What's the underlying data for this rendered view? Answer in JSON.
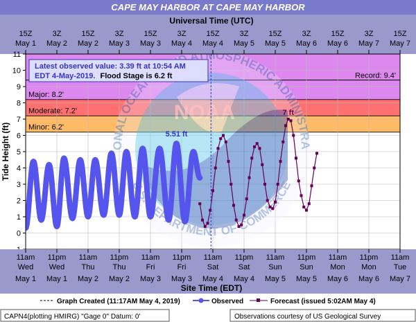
{
  "title": "CAPE MAY HARBOR AT CAPE MAY HARBOR",
  "top_axis_title": "Universal Time (UTC)",
  "top_ticks": [
    {
      "t": [
        "15Z",
        "May 1"
      ]
    },
    {
      "t": [
        "3Z",
        "May 2"
      ]
    },
    {
      "t": [
        "15Z",
        "May 2"
      ]
    },
    {
      "t": [
        "3Z",
        "May 3"
      ]
    },
    {
      "t": [
        "15Z",
        "May 3"
      ]
    },
    {
      "t": [
        "3Z",
        "May 4"
      ]
    },
    {
      "t": [
        "15Z",
        "May 4"
      ]
    },
    {
      "t": [
        "3Z",
        "May 5"
      ]
    },
    {
      "t": [
        "15Z",
        "May 5"
      ]
    },
    {
      "t": [
        "3Z",
        "May 6"
      ]
    },
    {
      "t": [
        "15Z",
        "May 6"
      ]
    },
    {
      "t": [
        "3Z",
        "May 7"
      ]
    },
    {
      "t": [
        "15Z",
        "May 7"
      ]
    }
  ],
  "bottom_ticks": [
    {
      "t": [
        "11am",
        "Wed",
        "May 1"
      ]
    },
    {
      "t": [
        "11pm",
        "Wed",
        "May 1"
      ]
    },
    {
      "t": [
        "11am",
        "Thu",
        "May 2"
      ]
    },
    {
      "t": [
        "11pm",
        "Thu",
        "May 2"
      ]
    },
    {
      "t": [
        "11am",
        "Fri",
        "May 3"
      ]
    },
    {
      "t": [
        "11pm",
        "Fri",
        "May 3"
      ]
    },
    {
      "t": [
        "11am",
        "Sat",
        "May 4"
      ]
    },
    {
      "t": [
        "11pm",
        "Sat",
        "May 4"
      ]
    },
    {
      "t": [
        "11am",
        "Sun",
        "May 5"
      ]
    },
    {
      "t": [
        "11pm",
        "Sun",
        "May 5"
      ]
    },
    {
      "t": [
        "11am",
        "Mon",
        "May 6"
      ]
    },
    {
      "t": [
        "11pm",
        "Mon",
        "May 6"
      ]
    },
    {
      "t": [
        "11am",
        "Tue",
        "May 7"
      ]
    }
  ],
  "bottom_axis_title": "Site Time (EDT)",
  "y_axis_title": "Tide Height (ft)",
  "bands": [
    {
      "label": "Minor:  6.2'",
      "from": 6.2,
      "to": 7.2,
      "color": "#ffbb66"
    },
    {
      "label": "Moderate:  7.2'",
      "from": 7.2,
      "to": 8.2,
      "color": "#ff7070"
    },
    {
      "label": "Major:  8.2'",
      "from": 8.2,
      "to": 11,
      "color": "#dd88ee"
    }
  ],
  "record": {
    "label": "Record: 9.4'",
    "value": 9.4
  },
  "info_box": {
    "line1": "Latest observed value: 3.39 ft at 10:54 AM",
    "line2a": "EDT 4-May-2019.",
    "line2b": "Flood Stage is 6.2 ft"
  },
  "peak_obs_label": "5.51 ft",
  "peak_fcst_label": "7 ft",
  "legend": {
    "created": "Graph Created (11:17AM May 4, 2019)",
    "observed": "Observed",
    "forecast": "Forecast (issued 5:02AM May 4)"
  },
  "footer_left": "CAPN4(plotting HMIRG) \"Gage 0\" Datum: 0'",
  "footer_right": "Observations courtesy of US Geological Survey",
  "watermark_noaa": "NOAA",
  "watermark_top": "NATIONAL OCEANIC AND ATMOSPHERIC ADMINISTRATION",
  "watermark_bottom": "U.S. DEPARTMENT OF COMMERCE",
  "colors": {
    "observed": "#5555ee",
    "forecast": "#660055",
    "title_bg": "#7a7acc",
    "axis_band": "#9999cc"
  },
  "chart_data": {
    "type": "line",
    "x_unit": "hours after 11am EDT Wed May 1, 2019",
    "y_unit": "ft",
    "ylim": [
      -1,
      11
    ],
    "xlim": [
      0,
      144
    ],
    "created_at_hours": 71.28,
    "series": [
      {
        "name": "Observed",
        "points": [
          [
            0,
            0.3
          ],
          [
            3,
            4.4
          ],
          [
            6,
            0.8
          ],
          [
            9,
            4.2
          ],
          [
            12,
            0.4
          ],
          [
            14.75,
            4.6
          ],
          [
            18,
            0.9
          ],
          [
            21,
            4.5
          ],
          [
            24,
            1.0
          ],
          [
            26.75,
            4.5
          ],
          [
            30,
            1.1
          ],
          [
            33,
            4.9
          ],
          [
            36,
            1.1
          ],
          [
            38.75,
            5.0
          ],
          [
            42,
            1.0
          ],
          [
            45,
            5.2
          ],
          [
            48,
            1.0
          ],
          [
            51.5,
            5.2
          ],
          [
            55,
            0.8
          ],
          [
            58,
            5.51
          ],
          [
            61.25,
            0.7
          ],
          [
            64.5,
            5.0
          ],
          [
            67,
            3.39
          ]
        ]
      },
      {
        "name": "Forecast",
        "points": [
          [
            67,
            1.8
          ],
          [
            68,
            0.8
          ],
          [
            69,
            0.4
          ],
          [
            70,
            0.6
          ],
          [
            71,
            1.4
          ],
          [
            72,
            2.6
          ],
          [
            73,
            4.0
          ],
          [
            74,
            5.2
          ],
          [
            75,
            5.8
          ],
          [
            76,
            6.0
          ],
          [
            77,
            5.6
          ],
          [
            78,
            4.4
          ],
          [
            79,
            3.0
          ],
          [
            80,
            1.7
          ],
          [
            81,
            0.8
          ],
          [
            82,
            0.4
          ],
          [
            83,
            0.5
          ],
          [
            84,
            1.1
          ],
          [
            85,
            2.1
          ],
          [
            86,
            3.4
          ],
          [
            87,
            4.6
          ],
          [
            88,
            5.3
          ],
          [
            89,
            5.5
          ],
          [
            90,
            5.2
          ],
          [
            91,
            4.2
          ],
          [
            92,
            3.0
          ],
          [
            93,
            2.0
          ],
          [
            94,
            1.6
          ],
          [
            95,
            1.5
          ],
          [
            96,
            1.9
          ],
          [
            97,
            3.0
          ],
          [
            98,
            4.4
          ],
          [
            99,
            5.6
          ],
          [
            100,
            6.6
          ],
          [
            101,
            7.0
          ],
          [
            102,
            6.9
          ],
          [
            103,
            6.0
          ],
          [
            104,
            4.6
          ],
          [
            105,
            3.2
          ],
          [
            106,
            2.3
          ],
          [
            107,
            1.6
          ],
          [
            108,
            1.4
          ],
          [
            109,
            1.8
          ],
          [
            110,
            2.9
          ],
          [
            111,
            4.0
          ],
          [
            112,
            4.9
          ]
        ]
      }
    ]
  }
}
